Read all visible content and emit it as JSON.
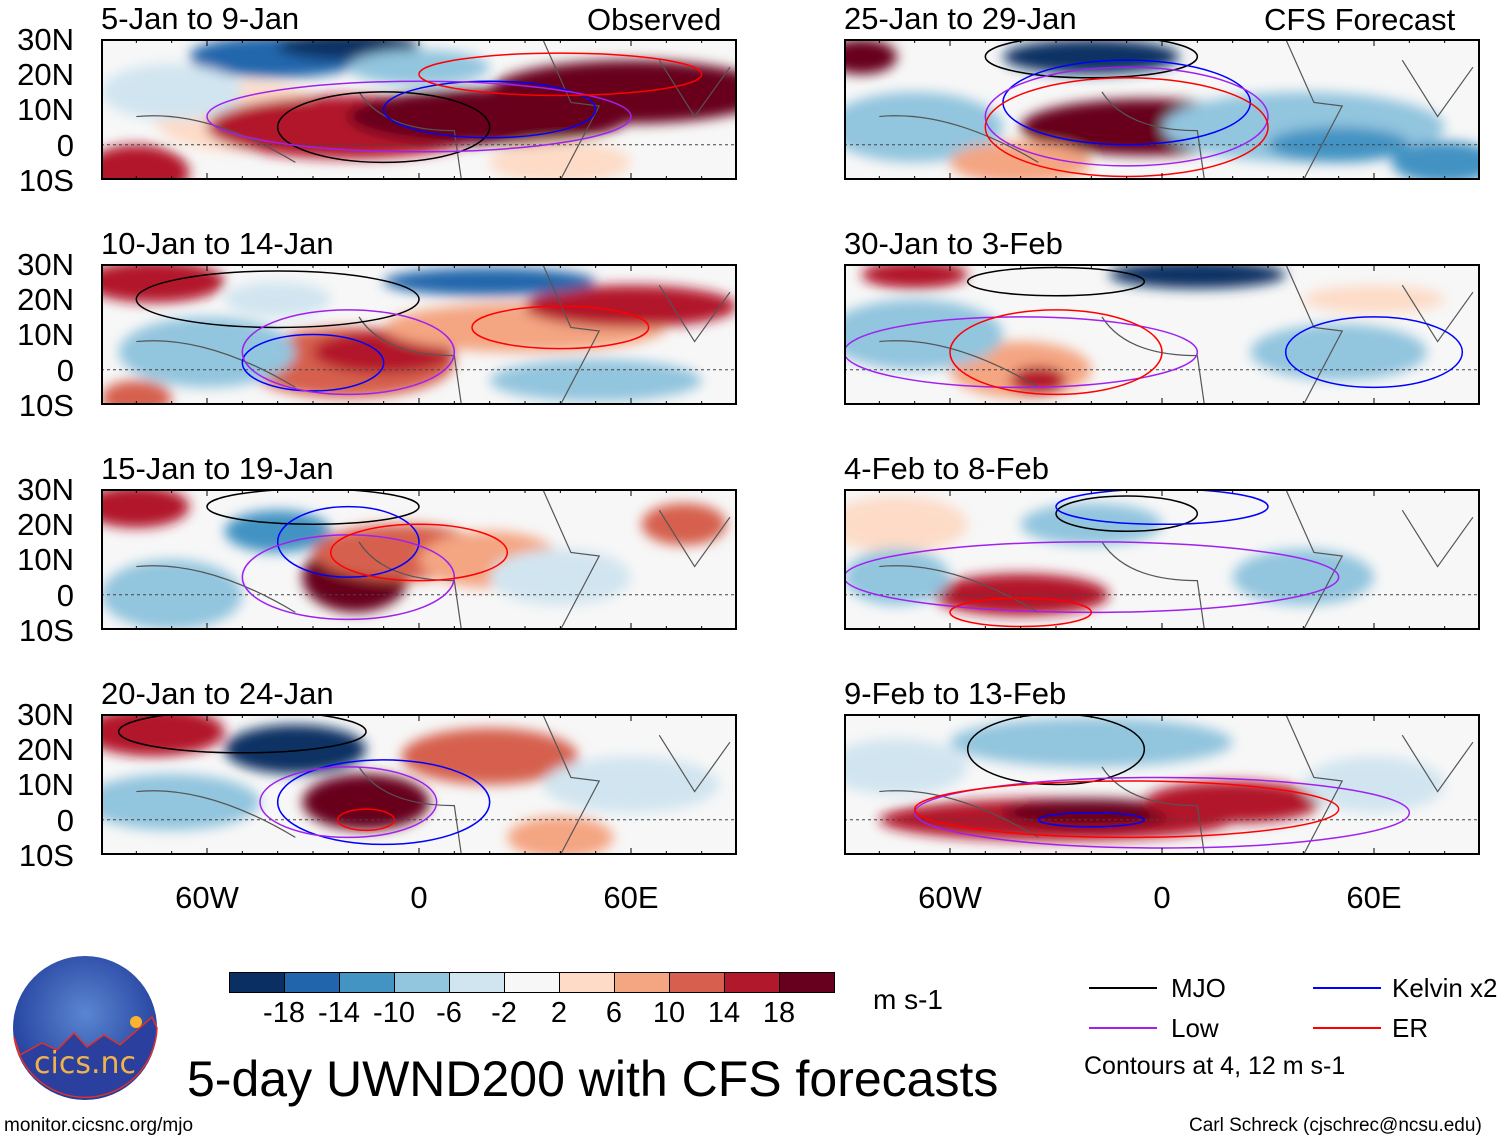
{
  "headers": {
    "observed": "Observed",
    "forecast": "CFS Forecast"
  },
  "panels_left": [
    {
      "title": "5-Jan to 9-Jan"
    },
    {
      "title": "10-Jan to 14-Jan"
    },
    {
      "title": "15-Jan to 19-Jan"
    },
    {
      "title": "20-Jan to 24-Jan"
    }
  ],
  "panels_right": [
    {
      "title": "25-Jan to 29-Jan"
    },
    {
      "title": "30-Jan to 3-Feb"
    },
    {
      "title": "4-Feb to 8-Feb"
    },
    {
      "title": "9-Feb to 13-Feb"
    }
  ],
  "lat_labels": [
    "30N",
    "20N",
    "10N",
    "0",
    "10S"
  ],
  "lon_labels": [
    "60W",
    "0",
    "60E"
  ],
  "colorbar": {
    "colors": [
      "#0a3063",
      "#2166ac",
      "#4393c3",
      "#92c5de",
      "#d1e5f0",
      "#f7f7f7",
      "#fddbc7",
      "#f4a582",
      "#d6604d",
      "#b2182b",
      "#67001f"
    ],
    "labels": [
      "-18",
      "-14",
      "-10",
      "-6",
      "-2",
      "2",
      "6",
      "10",
      "14",
      "18"
    ],
    "units": "m s-1"
  },
  "legend": {
    "items": [
      {
        "label": "MJO",
        "color": "#000000"
      },
      {
        "label": "Kelvin x2",
        "color": "#0000ff"
      },
      {
        "label": "Low",
        "color": "#a020f0"
      },
      {
        "label": "ER",
        "color": "#ff0000"
      }
    ],
    "contours_note": "Contours at 4, 12 m s-1"
  },
  "title": "5-day UWND200 with CFS forecasts",
  "logo": {
    "name": "cics.nc",
    "ring_text": "Cooperative Institute for Climate and Satellites"
  },
  "footer": {
    "url": "monitor.cicsnc.org/mjo",
    "credit": "Carl Schreck (cjschrec@ncsu.edu)"
  }
}
